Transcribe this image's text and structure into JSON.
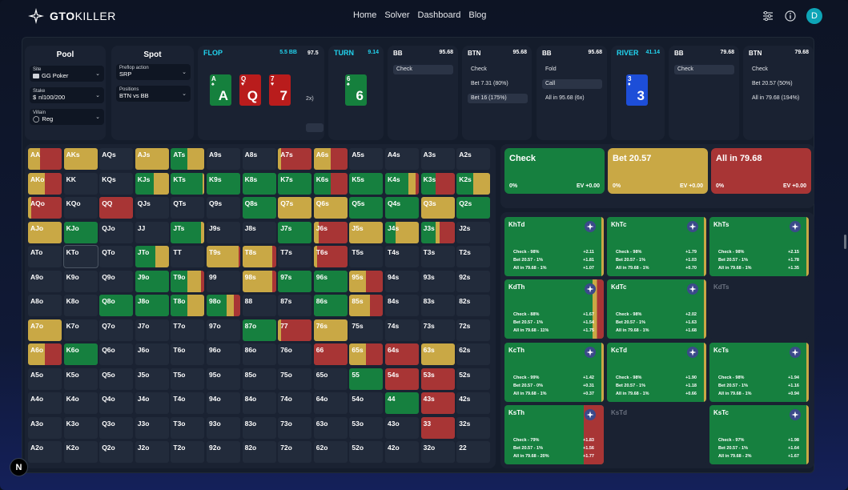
{
  "app": {
    "logo_bold": "GTO",
    "logo_thin": "KILLER",
    "nav": [
      "Home",
      "Solver",
      "Dashboard",
      "Blog"
    ],
    "avatar_letter": "D",
    "corner_badge": "N"
  },
  "pool": {
    "title": "Pool",
    "site_label": "Site",
    "site_value": "GG Poker",
    "stake_label": "Stake",
    "stake_value": "nl100/200",
    "villain_label": "Villain",
    "villain_value": "Reg"
  },
  "spot": {
    "title": "Spot",
    "preflop_label": "Preflop action",
    "preflop_value": "SRP",
    "positions_label": "Positions",
    "positions_value": "BTN vs BB"
  },
  "flop": {
    "title": "FLOP",
    "bb": "5.5 BB",
    "peek_value": "97.5",
    "peek_action": "2x)",
    "cards": [
      {
        "rank": "A",
        "suit": "♠",
        "color": "s"
      },
      {
        "rank": "Q",
        "suit": "♥",
        "color": "h"
      },
      {
        "rank": "7",
        "suit": "♥",
        "color": "h"
      }
    ]
  },
  "turn": {
    "title": "TURN",
    "bb": "9.14",
    "cards": [
      {
        "rank": "6",
        "suit": "♠",
        "color": "s"
      }
    ]
  },
  "turn_bb": {
    "pos": "BB",
    "stack": "95.68",
    "actions": [
      "Check"
    ]
  },
  "turn_btn": {
    "pos": "BTN",
    "stack": "95.68",
    "actions": [
      "Check",
      "Bet 7.31 (80%)",
      "Bet 16 (175%)"
    ]
  },
  "turn_bb2": {
    "pos": "BB",
    "stack": "95.68",
    "actions": [
      "Fold",
      "Call",
      "All in 95.68 (6x)"
    ]
  },
  "river": {
    "title": "RIVER",
    "bb": "41.14",
    "cards": [
      {
        "rank": "3",
        "suit": "♦",
        "color": "d"
      }
    ]
  },
  "river_bb": {
    "pos": "BB",
    "stack": "79.68",
    "actions": [
      "Check"
    ]
  },
  "river_btn": {
    "pos": "BTN",
    "stack": "79.68",
    "actions": [
      "Check",
      "Bet 20.57 (50%)",
      "All in 79.68 (194%)"
    ]
  },
  "colors": {
    "green": "#16803f",
    "yellow": "#c9a845",
    "red": "#a83535",
    "empty": "#222b3b"
  },
  "matrix": {
    "rows": [
      [
        "AA",
        "AKs",
        "AQs",
        "AJs",
        "ATs",
        "A9s",
        "A8s",
        "A7s",
        "A6s",
        "A5s",
        "A4s",
        "A3s",
        "A2s"
      ],
      [
        "AKo",
        "KK",
        "KQs",
        "KJs",
        "KTs",
        "K9s",
        "K8s",
        "K7s",
        "K6s",
        "K5s",
        "K4s",
        "K3s",
        "K2s"
      ],
      [
        "AQo",
        "KQo",
        "QQ",
        "QJs",
        "QTs",
        "Q9s",
        "Q8s",
        "Q7s",
        "Q6s",
        "Q5s",
        "Q4s",
        "Q3s",
        "Q2s"
      ],
      [
        "AJo",
        "KJo",
        "QJo",
        "JJ",
        "JTs",
        "J9s",
        "J8s",
        "J7s",
        "J6s",
        "J5s",
        "J4s",
        "J3s",
        "J2s"
      ],
      [
        "ATo",
        "KTo",
        "QTo",
        "JTo",
        "TT",
        "T9s",
        "T8s",
        "T7s",
        "T6s",
        "T5s",
        "T4s",
        "T3s",
        "T2s"
      ],
      [
        "A9o",
        "K9o",
        "Q9o",
        "J9o",
        "T9o",
        "99",
        "98s",
        "97s",
        "96s",
        "95s",
        "94s",
        "93s",
        "92s"
      ],
      [
        "A8o",
        "K8o",
        "Q8o",
        "J8o",
        "T8o",
        "98o",
        "88",
        "87s",
        "86s",
        "85s",
        "84s",
        "83s",
        "82s"
      ],
      [
        "A7o",
        "K7o",
        "Q7o",
        "J7o",
        "T7o",
        "97o",
        "87o",
        "77",
        "76s",
        "75s",
        "74s",
        "73s",
        "72s"
      ],
      [
        "A6o",
        "K6o",
        "Q6o",
        "J6o",
        "T6o",
        "96o",
        "86o",
        "76o",
        "66",
        "65s",
        "64s",
        "63s",
        "62s"
      ],
      [
        "A5o",
        "K5o",
        "Q5o",
        "J5o",
        "T5o",
        "95o",
        "85o",
        "75o",
        "65o",
        "55",
        "54s",
        "53s",
        "52s"
      ],
      [
        "A4o",
        "K4o",
        "Q4o",
        "J4o",
        "T4o",
        "94o",
        "84o",
        "74o",
        "64o",
        "54o",
        "44",
        "43s",
        "42s"
      ],
      [
        "A3o",
        "K3o",
        "Q3o",
        "J3o",
        "T3o",
        "93o",
        "83o",
        "73o",
        "63o",
        "53o",
        "43o",
        "33",
        "32s"
      ],
      [
        "A2o",
        "K2o",
        "Q2o",
        "J2o",
        "T2o",
        "92o",
        "82o",
        "72o",
        "62o",
        "52o",
        "42o",
        "32o",
        "22"
      ]
    ],
    "mix": {
      "AA": [
        [
          0,
          0.35,
          0.65
        ]
      ],
      "AKs": [
        [
          0,
          1,
          0
        ]
      ],
      "AJs": [
        [
          0,
          1,
          0
        ]
      ],
      "ATs": [
        [
          0.5,
          0.5,
          0
        ]
      ],
      "A7s": [
        [
          0,
          0.1,
          0.9
        ]
      ],
      "A6s": [
        [
          0,
          0.5,
          0.5
        ]
      ],
      "AKo": [
        [
          0,
          0.5,
          0.5
        ]
      ],
      "KJs": [
        [
          0.55,
          0.45,
          0
        ]
      ],
      "KTs": [
        [
          0.95,
          0.05,
          0
        ]
      ],
      "K9s": [
        [
          1,
          0,
          0
        ]
      ],
      "K8s": [
        [
          1,
          0,
          0
        ]
      ],
      "K7s": [
        [
          1,
          0,
          0
        ]
      ],
      "K6s": [
        [
          0.5,
          0,
          0.5
        ]
      ],
      "K5s": [
        [
          1,
          0,
          0
        ]
      ],
      "K4s": [
        [
          0.7,
          0.2,
          0.1
        ]
      ],
      "K3s": [
        [
          0.45,
          0,
          0.55
        ]
      ],
      "K2s": [
        [
          0.5,
          0.5,
          0
        ]
      ],
      "AQo": [
        [
          0,
          0.1,
          0.9
        ]
      ],
      "QQ": [
        [
          0,
          0,
          1
        ]
      ],
      "Q8s": [
        [
          1,
          0,
          0
        ]
      ],
      "Q7s": [
        [
          0,
          1,
          0
        ]
      ],
      "Q6s": [
        [
          0,
          1,
          0
        ]
      ],
      "Q5s": [
        [
          1,
          0,
          0
        ]
      ],
      "Q4s": [
        [
          1,
          0,
          0
        ]
      ],
      "Q3s": [
        [
          0,
          1,
          0
        ]
      ],
      "Q2s": [
        [
          1,
          0,
          0
        ]
      ],
      "AJo": [
        [
          0,
          1,
          0
        ]
      ],
      "KJo": [
        [
          1,
          0,
          0
        ]
      ],
      "JTs": [
        [
          0.9,
          0.1,
          0
        ]
      ],
      "J7s": [
        [
          1,
          0,
          0
        ]
      ],
      "J6s": [
        [
          0,
          0.15,
          0.85
        ]
      ],
      "J5s": [
        [
          0,
          1,
          0
        ]
      ],
      "J4s": [
        [
          0.3,
          0.7,
          0
        ]
      ],
      "J3s": [
        [
          0.45,
          0.1,
          0.45
        ]
      ],
      "JTo": [
        [
          0.6,
          0.4,
          0
        ]
      ],
      "T9s": [
        [
          0,
          0.95,
          0.05
        ]
      ],
      "T8s": [
        [
          0,
          0.9,
          0.1
        ]
      ],
      "T6s": [
        [
          0,
          0.1,
          0.9
        ]
      ],
      "J9o": [
        [
          1,
          0,
          0
        ]
      ],
      "T9o": [
        [
          0.5,
          0.4,
          0.1
        ]
      ],
      "98s": [
        [
          0,
          0.9,
          0.1
        ]
      ],
      "97s": [
        [
          1,
          0,
          0
        ]
      ],
      "96s": [
        [
          1,
          0,
          0
        ]
      ],
      "95s": [
        [
          0,
          0.5,
          0.5
        ]
      ],
      "Q8o": [
        [
          1,
          0,
          0
        ]
      ],
      "J8o": [
        [
          1,
          0,
          0
        ]
      ],
      "T8o": [
        [
          0.5,
          0.5,
          0
        ]
      ],
      "98o": [
        [
          0.6,
          0.2,
          0.2
        ]
      ],
      "86s": [
        [
          1,
          0,
          0
        ]
      ],
      "85s": [
        [
          0,
          0.6,
          0.4
        ]
      ],
      "A7o": [
        [
          0,
          1,
          0
        ]
      ],
      "87o": [
        [
          1,
          0,
          0
        ]
      ],
      "77": [
        [
          0,
          0.1,
          0.9
        ]
      ],
      "76s": [
        [
          0,
          1,
          0
        ]
      ],
      "A6o": [
        [
          0,
          0.5,
          0.5
        ]
      ],
      "K6o": [
        [
          1,
          0,
          0
        ]
      ],
      "66": [
        [
          0,
          0,
          1
        ]
      ],
      "65s": [
        [
          0,
          0.5,
          0.5
        ]
      ],
      "64s": [
        [
          0,
          0,
          1
        ]
      ],
      "63s": [
        [
          0,
          1,
          0
        ]
      ],
      "55": [
        [
          1,
          0,
          0
        ]
      ],
      "54s": [
        [
          0,
          0,
          1
        ]
      ],
      "53s": [
        [
          0,
          0,
          1
        ]
      ],
      "44": [
        [
          1,
          0,
          0
        ]
      ],
      "43s": [
        [
          0,
          0,
          1
        ]
      ],
      "33": [
        [
          0,
          0,
          1
        ]
      ]
    }
  },
  "actions": [
    {
      "title": "Check",
      "pct": "0%",
      "ev": "EV +0.00",
      "kind": "green"
    },
    {
      "title": "Bet 20.57",
      "pct": "0%",
      "ev": "EV +0.00",
      "kind": "yellow"
    },
    {
      "title": "All in 79.68",
      "pct": "0%",
      "ev": "EV +0.00",
      "kind": "red"
    }
  ],
  "combos": [
    {
      "name": "KhTd",
      "empty": false,
      "bar": "yellow",
      "rows": [
        [
          "Check - 98%",
          "+2.11"
        ],
        [
          "Bet 20.57 - 1%",
          "+1.81"
        ],
        [
          "All in 79.68 - 1%",
          "+1.07"
        ]
      ]
    },
    {
      "name": "KhTc",
      "empty": false,
      "bar": "yellow",
      "rows": [
        [
          "Check - 98%",
          "+1.79"
        ],
        [
          "Bet 20.57 - 1%",
          "+1.03"
        ],
        [
          "All in 79.68 - 1%",
          "+0.70"
        ]
      ]
    },
    {
      "name": "KhTs",
      "empty": false,
      "bar": "yellow",
      "rows": [
        [
          "Check - 98%",
          "+2.15"
        ],
        [
          "Bet 20.57 - 1%",
          "+1.78"
        ],
        [
          "All in 79.68 - 1%",
          "+1.35"
        ]
      ]
    },
    {
      "name": "KdTh",
      "empty": false,
      "bar": "mixed",
      "rows": [
        [
          "Check - 88%",
          "+1.67"
        ],
        [
          "Bet 20.57 - 1%",
          "+1.54"
        ],
        [
          "All in 79.68 - 11%",
          "+1.75"
        ]
      ]
    },
    {
      "name": "KdTc",
      "empty": false,
      "bar": "yellow",
      "rows": [
        [
          "Check - 98%",
          "+2.02"
        ],
        [
          "Bet 20.57 - 1%",
          "+1.63"
        ],
        [
          "All in 79.68 - 1%",
          "+1.68"
        ]
      ]
    },
    {
      "name": "KdTs",
      "empty": true,
      "bar": "none",
      "rows": []
    },
    {
      "name": "KcTh",
      "empty": false,
      "bar": "yellow",
      "rows": [
        [
          "Check - 99%",
          "+1.42"
        ],
        [
          "Bet 20.57 - 0%",
          "+0.31"
        ],
        [
          "All in 79.68 - 1%",
          "+0.37"
        ]
      ]
    },
    {
      "name": "KcTd",
      "empty": false,
      "bar": "yellow",
      "rows": [
        [
          "Check - 98%",
          "+1.90"
        ],
        [
          "Bet 20.57 - 1%",
          "+1.18"
        ],
        [
          "All in 79.68 - 1%",
          "+0.66"
        ]
      ]
    },
    {
      "name": "KcTs",
      "empty": false,
      "bar": "yellow",
      "rows": [
        [
          "Check - 98%",
          "+1.94"
        ],
        [
          "Bet 20.57 - 1%",
          "+1.16"
        ],
        [
          "All in 79.68 - 1%",
          "+0.94"
        ]
      ]
    },
    {
      "name": "KsTh",
      "empty": false,
      "bar": "bigred",
      "rows": [
        [
          "Check - 79%",
          "+1.83"
        ],
        [
          "Bet 20.57 - 1%",
          "+1.56"
        ],
        [
          "All in 79.68 - 20%",
          "+1.77"
        ]
      ]
    },
    {
      "name": "KsTd",
      "empty": true,
      "bar": "none",
      "rows": []
    },
    {
      "name": "KsTc",
      "empty": false,
      "bar": "yellow",
      "rows": [
        [
          "Check - 97%",
          "+1.98"
        ],
        [
          "Bet 20.57 - 1%",
          "+1.64"
        ],
        [
          "All in 79.68 - 2%",
          "+1.67"
        ]
      ]
    }
  ]
}
